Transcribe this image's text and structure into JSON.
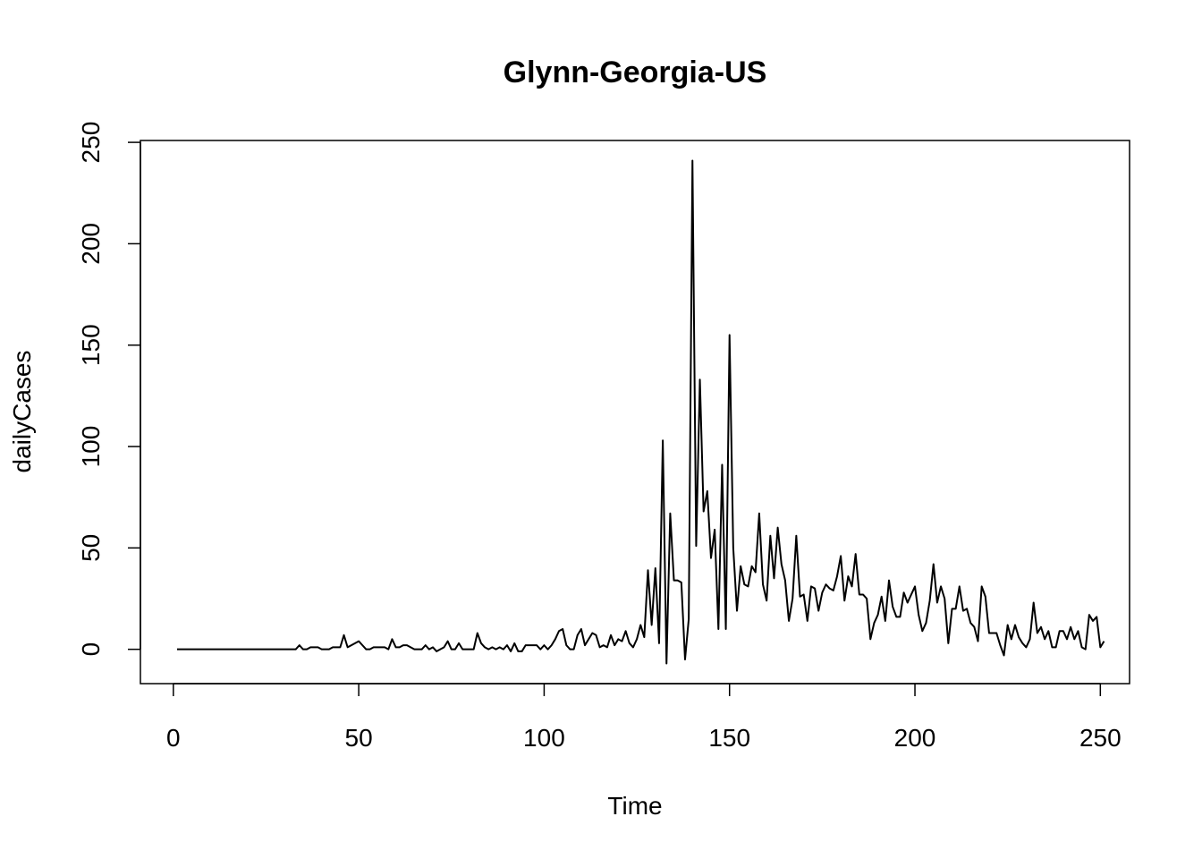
{
  "chart_data": {
    "type": "line",
    "title": "Glynn-Georgia-US",
    "xlabel": "Time",
    "ylabel": "dailyCases",
    "xlim": [
      1,
      248
    ],
    "ylim": [
      -7,
      241
    ],
    "x_ticks": [
      0,
      50,
      100,
      150,
      200,
      250
    ],
    "y_ticks": [
      0,
      50,
      100,
      150,
      200,
      250
    ],
    "grid": false,
    "legend": "none",
    "line_color": "#000000",
    "series": [
      {
        "x_start": 1,
        "values": [
          0,
          0,
          0,
          0,
          0,
          0,
          0,
          0,
          0,
          0,
          0,
          0,
          0,
          0,
          0,
          0,
          0,
          0,
          0,
          0,
          0,
          0,
          0,
          0,
          0,
          0,
          0,
          0,
          0,
          0,
          0,
          0,
          0,
          2,
          0,
          0,
          1,
          1,
          1,
          0,
          0,
          0,
          1,
          1,
          1,
          7,
          1,
          2,
          3,
          4,
          2,
          0,
          0,
          1,
          1,
          1,
          1,
          0,
          5,
          1,
          1,
          2,
          2,
          1,
          0,
          0,
          0,
          2,
          0,
          1,
          -1,
          0,
          1,
          4,
          0,
          0,
          3,
          0,
          0,
          0,
          0,
          8,
          3,
          1,
          0,
          1,
          0,
          1,
          0,
          2,
          -1,
          3,
          -1,
          -1,
          2,
          2,
          2,
          2,
          0,
          2,
          0,
          2,
          5,
          9,
          10,
          2,
          0,
          0,
          7,
          10,
          2,
          5,
          8,
          7,
          1,
          2,
          1,
          7,
          2,
          5,
          4,
          9,
          3,
          1,
          5,
          12,
          6,
          39,
          12,
          40,
          3,
          103,
          -7,
          67,
          34,
          34,
          33,
          -5,
          15,
          241,
          51,
          133,
          68,
          78,
          45,
          59,
          10,
          91,
          10,
          155,
          50,
          19,
          41,
          32,
          31,
          41,
          38,
          67,
          32,
          24,
          56,
          35,
          60,
          42,
          34,
          14,
          25,
          56,
          26,
          27,
          14,
          31,
          30,
          19,
          28,
          32,
          30,
          29,
          36,
          46,
          24,
          36,
          31,
          47,
          27,
          27,
          25,
          5,
          13,
          17,
          26,
          14,
          34,
          21,
          16,
          16,
          28,
          23,
          27,
          31,
          17,
          9,
          13,
          24,
          42,
          23,
          31,
          25,
          3,
          20,
          20,
          31,
          19,
          20,
          13,
          11,
          4,
          31,
          26,
          8,
          8,
          8,
          2,
          -3,
          12,
          5,
          12,
          6,
          3,
          1,
          5,
          23,
          8,
          11,
          5,
          9,
          1,
          1,
          9,
          9,
          5,
          11,
          5,
          9,
          1,
          0,
          17,
          14,
          16,
          1,
          4
        ]
      }
    ]
  }
}
